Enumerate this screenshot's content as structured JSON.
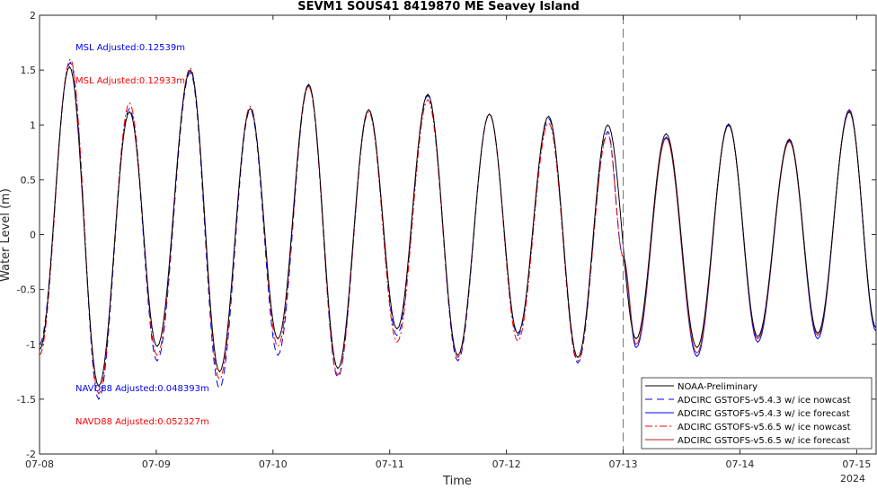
{
  "chart_data": {
    "type": "line",
    "title": "SEVM1 SOUS41 8419870 ME Seavey Island",
    "xlabel": "Time",
    "ylabel": "Water Level (m)",
    "ylim": [
      -2,
      2
    ],
    "xlim": [
      "2024-07-08 00:00",
      "2024-07-15 04:00"
    ],
    "x_ticks": [
      "07-08",
      "07-09",
      "07-10",
      "07-11",
      "07-12",
      "07-13",
      "07-14",
      "07-15"
    ],
    "x_tick_year": "2024",
    "y_ticks": [
      "-2",
      "-1.5",
      "-1",
      "-0.5",
      "0",
      "0.5",
      "1",
      "1.5",
      "2"
    ],
    "grid": false,
    "legend_position": "bottom-right",
    "forecast_start": "2024-07-13 00:00",
    "annotations": [
      {
        "text": "MSL Adjusted:0.12539m",
        "color": "#0000ff"
      },
      {
        "text": "MSL Adjusted:0.12933m",
        "color": "#ff0000"
      },
      {
        "text": "NAVD88 Adjusted:0.048393m",
        "color": "#0000ff"
      },
      {
        "text": "NAVD88 Adjusted:0.052327m",
        "color": "#ff0000"
      }
    ],
    "series": [
      {
        "name": "NOAA-Preliminary",
        "color": "#000000",
        "dash": "solid",
        "span": [
          "2024-07-08 00:00",
          "2024-07-15 04:00"
        ]
      },
      {
        "name": "ADCIRC GSTOFS-v5.4.3 w/ ice nowcast",
        "color": "#0000ff",
        "dash": "dashed",
        "span": [
          "2024-07-08 00:00",
          "2024-07-13 00:00"
        ]
      },
      {
        "name": "ADCIRC GSTOFS-v5.4.3 w/ ice forecast",
        "color": "#0000ff",
        "dash": "solid",
        "span": [
          "2024-07-13 00:00",
          "2024-07-15 04:00"
        ]
      },
      {
        "name": "ADCIRC GSTOFS-v5.6.5 w/ ice nowcast",
        "color": "#ff0000",
        "dash": "dashdot",
        "span": [
          "2024-07-08 00:00",
          "2024-07-13 00:00"
        ]
      },
      {
        "name": "ADCIRC GSTOFS-v5.6.5 w/ ice forecast",
        "color": "#b22222",
        "dash": "solid",
        "span": [
          "2024-07-13 00:00",
          "2024-07-15 04:00"
        ]
      }
    ],
    "extrema": {
      "NOAA-Preliminary": [
        [
          "2024-07-08 00:00",
          -1.05
        ],
        [
          "2024-07-08 06:10",
          1.53
        ],
        [
          "2024-07-08 12:10",
          -1.38
        ],
        [
          "2024-07-08 18:30",
          1.12
        ],
        [
          "2024-07-09 00:10",
          -1.02
        ],
        [
          "2024-07-09 07:00",
          1.5
        ],
        [
          "2024-07-09 13:00",
          -1.25
        ],
        [
          "2024-07-09 19:20",
          1.15
        ],
        [
          "2024-07-10 01:00",
          -0.95
        ],
        [
          "2024-07-10 07:20",
          1.37
        ],
        [
          "2024-07-10 13:20",
          -1.22
        ],
        [
          "2024-07-10 19:40",
          1.14
        ],
        [
          "2024-07-11 01:30",
          -0.86
        ],
        [
          "2024-07-11 07:50",
          1.28
        ],
        [
          "2024-07-11 14:00",
          -1.1
        ],
        [
          "2024-07-11 20:30",
          1.1
        ],
        [
          "2024-07-12 02:20",
          -0.9
        ],
        [
          "2024-07-12 08:40",
          1.08
        ],
        [
          "2024-07-12 14:40",
          -1.12
        ],
        [
          "2024-07-12 20:50",
          1.0
        ],
        [
          "2024-07-13 02:40",
          -0.95
        ],
        [
          "2024-07-13 08:50",
          0.92
        ],
        [
          "2024-07-13 15:10",
          -1.03
        ],
        [
          "2024-07-13 21:40",
          1.0
        ],
        [
          "2024-07-14 03:40",
          -0.93
        ],
        [
          "2024-07-14 10:10",
          0.87
        ],
        [
          "2024-07-14 16:00",
          -0.9
        ],
        [
          "2024-07-14 22:30",
          1.12
        ],
        [
          "2024-07-15 04:00",
          -0.85
        ]
      ],
      "ADCIRC GSTOFS-v5.4.3 w/ ice nowcast": [
        [
          "2024-07-08 00:00",
          -1.0
        ],
        [
          "2024-07-08 06:20",
          1.57
        ],
        [
          "2024-07-08 12:10",
          -1.5
        ],
        [
          "2024-07-08 18:30",
          1.15
        ],
        [
          "2024-07-09 00:10",
          -1.15
        ],
        [
          "2024-07-09 07:00",
          1.48
        ],
        [
          "2024-07-09 13:00",
          -1.4
        ],
        [
          "2024-07-09 19:20",
          1.14
        ],
        [
          "2024-07-10 01:00",
          -1.1
        ],
        [
          "2024-07-10 07:20",
          1.36
        ],
        [
          "2024-07-10 13:20",
          -1.3
        ],
        [
          "2024-07-10 19:40",
          1.14
        ],
        [
          "2024-07-11 01:30",
          -0.92
        ],
        [
          "2024-07-11 07:50",
          1.27
        ],
        [
          "2024-07-11 14:00",
          -1.15
        ],
        [
          "2024-07-11 20:30",
          1.1
        ],
        [
          "2024-07-12 02:20",
          -0.92
        ],
        [
          "2024-07-12 08:40",
          1.06
        ],
        [
          "2024-07-12 14:40",
          -1.17
        ],
        [
          "2024-07-12 20:50",
          0.94
        ],
        [
          "2024-07-13 00:00",
          -0.2
        ]
      ],
      "ADCIRC GSTOFS-v5.6.5 w/ ice nowcast": [
        [
          "2024-07-08 00:00",
          -1.1
        ],
        [
          "2024-07-08 06:20",
          1.6
        ],
        [
          "2024-07-08 12:10",
          -1.45
        ],
        [
          "2024-07-08 18:30",
          1.2
        ],
        [
          "2024-07-09 00:10",
          -1.1
        ],
        [
          "2024-07-09 07:00",
          1.52
        ],
        [
          "2024-07-09 13:00",
          -1.32
        ],
        [
          "2024-07-09 19:20",
          1.17
        ],
        [
          "2024-07-10 01:00",
          -1.02
        ],
        [
          "2024-07-10 07:20",
          1.35
        ],
        [
          "2024-07-10 13:20",
          -1.28
        ],
        [
          "2024-07-10 19:40",
          1.12
        ],
        [
          "2024-07-11 01:30",
          -0.98
        ],
        [
          "2024-07-11 07:50",
          1.23
        ],
        [
          "2024-07-11 14:00",
          -1.12
        ],
        [
          "2024-07-11 20:30",
          1.1
        ],
        [
          "2024-07-12 02:20",
          -0.97
        ],
        [
          "2024-07-12 08:40",
          1.02
        ],
        [
          "2024-07-12 14:40",
          -1.15
        ],
        [
          "2024-07-12 20:50",
          0.92
        ],
        [
          "2024-07-13 00:00",
          -0.2
        ]
      ],
      "forecast_common": [
        [
          "2024-07-13 00:00",
          -0.2
        ],
        [
          "2024-07-13 02:40",
          -1.0
        ],
        [
          "2024-07-13 08:50",
          0.88
        ],
        [
          "2024-07-13 15:10",
          -1.08
        ],
        [
          "2024-07-13 21:40",
          1.0
        ],
        [
          "2024-07-14 03:40",
          -0.95
        ],
        [
          "2024-07-14 10:10",
          0.85
        ],
        [
          "2024-07-14 16:00",
          -0.92
        ],
        [
          "2024-07-14 22:30",
          1.13
        ],
        [
          "2024-07-15 04:00",
          -0.85
        ]
      ]
    }
  }
}
